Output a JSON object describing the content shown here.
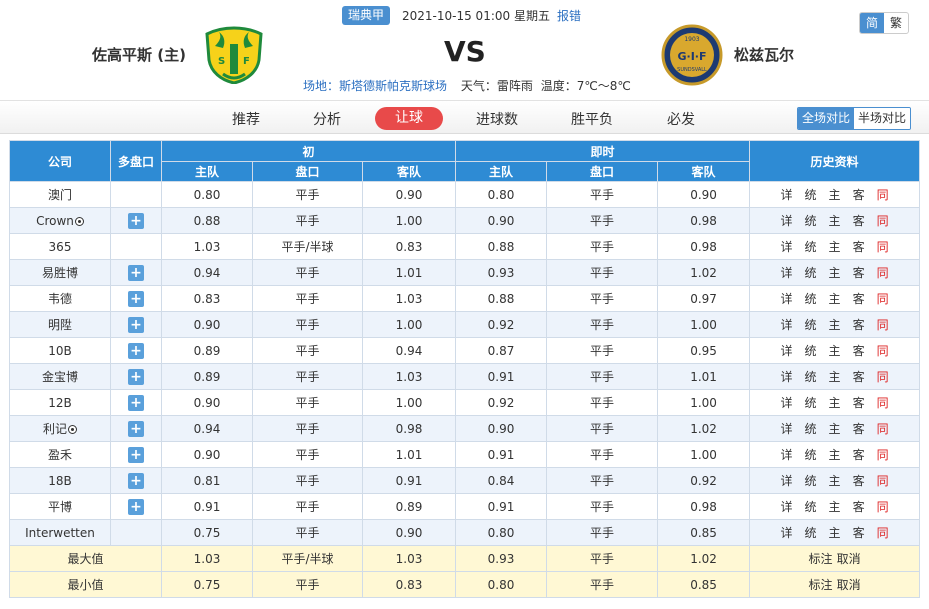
{
  "header": {
    "league": "瑞典甲",
    "datetime": "2021-10-15 01:00 星期五",
    "report": "报错",
    "lang_simplified": "简",
    "lang_traditional": "繁",
    "home_team": "佐高平斯 (主)",
    "away_team": "松兹瓦尔",
    "vs": "VS",
    "home_logo_text": "SJF",
    "away_logo_text": "G·I·F",
    "away_logo_year": "1903",
    "away_logo_sub": "SUNDSVALL",
    "venue_label": "场地：斯塔德斯帕克斯球场",
    "weather": "天气：雷阵雨",
    "temperature": "温度：7℃～8℃",
    "colors": {
      "accent": "#4a8fd0",
      "active_tab": "#e84a4a",
      "table_header": "#2e8bd4"
    }
  },
  "nav": {
    "items": [
      "推荐",
      "分析",
      "让球",
      "进球数",
      "胜平负",
      "必发"
    ],
    "active_index": 2,
    "compare_full": "全场对比",
    "compare_half": "半场对比"
  },
  "table": {
    "head": {
      "company": "公司",
      "multi": "多盘口",
      "initial": "初",
      "live": "即时",
      "history": "历史资料",
      "home": "主队",
      "line": "盘口",
      "away": "客队"
    },
    "history_links": [
      "详",
      "统",
      "主",
      "客",
      "同"
    ],
    "rows": [
      {
        "company": "澳门",
        "ball": false,
        "plus": false,
        "i_home": "0.80",
        "i_line": "平手",
        "i_away": "0.90",
        "l_home": "0.80",
        "l_line": "平手",
        "l_away": "0.90"
      },
      {
        "company": "Crown",
        "ball": true,
        "plus": true,
        "i_home": "0.88",
        "i_line": "平手",
        "i_away": "1.00",
        "l_home": "0.90",
        "l_line": "平手",
        "l_away": "0.98"
      },
      {
        "company": "365",
        "ball": false,
        "plus": false,
        "i_home": "1.03",
        "i_line": "平手/半球",
        "i_away": "0.83",
        "l_home": "0.88",
        "l_line": "平手",
        "l_away": "0.98"
      },
      {
        "company": "易胜博",
        "ball": false,
        "plus": true,
        "i_home": "0.94",
        "i_line": "平手",
        "i_away": "1.01",
        "l_home": "0.93",
        "l_line": "平手",
        "l_away": "1.02"
      },
      {
        "company": "韦德",
        "ball": false,
        "plus": true,
        "i_home": "0.83",
        "i_line": "平手",
        "i_away": "1.03",
        "l_home": "0.88",
        "l_line": "平手",
        "l_away": "0.97"
      },
      {
        "company": "明陞",
        "ball": false,
        "plus": true,
        "i_home": "0.90",
        "i_line": "平手",
        "i_away": "1.00",
        "l_home": "0.92",
        "l_line": "平手",
        "l_away": "1.00"
      },
      {
        "company": "10B",
        "ball": false,
        "plus": true,
        "i_home": "0.89",
        "i_line": "平手",
        "i_away": "0.94",
        "l_home": "0.87",
        "l_line": "平手",
        "l_away": "0.95"
      },
      {
        "company": "金宝博",
        "ball": false,
        "plus": true,
        "i_home": "0.89",
        "i_line": "平手",
        "i_away": "1.03",
        "l_home": "0.91",
        "l_line": "平手",
        "l_away": "1.01"
      },
      {
        "company": "12B",
        "ball": false,
        "plus": true,
        "i_home": "0.90",
        "i_line": "平手",
        "i_away": "1.00",
        "l_home": "0.92",
        "l_line": "平手",
        "l_away": "1.00"
      },
      {
        "company": "利记",
        "ball": true,
        "plus": true,
        "i_home": "0.94",
        "i_line": "平手",
        "i_away": "0.98",
        "l_home": "0.90",
        "l_line": "平手",
        "l_away": "1.02"
      },
      {
        "company": "盈禾",
        "ball": false,
        "plus": true,
        "i_home": "0.90",
        "i_line": "平手",
        "i_away": "1.01",
        "l_home": "0.91",
        "l_line": "平手",
        "l_away": "1.00"
      },
      {
        "company": "18B",
        "ball": false,
        "plus": true,
        "i_home": "0.81",
        "i_line": "平手",
        "i_away": "0.91",
        "l_home": "0.84",
        "l_line": "平手",
        "l_away": "0.92"
      },
      {
        "company": "平博",
        "ball": false,
        "plus": true,
        "i_home": "0.91",
        "i_line": "平手",
        "i_away": "0.89",
        "l_home": "0.91",
        "l_line": "平手",
        "l_away": "0.98"
      },
      {
        "company": "Interwetten",
        "ball": false,
        "plus": false,
        "i_home": "0.75",
        "i_line": "平手",
        "i_away": "0.90",
        "l_home": "0.80",
        "l_line": "平手",
        "l_away": "0.85"
      }
    ],
    "summary": [
      {
        "label": "最大值",
        "i_home": "1.03",
        "i_line": "平手/半球",
        "i_away": "1.03",
        "l_home": "0.93",
        "l_line": "平手",
        "l_away": "1.02",
        "mark": "标注",
        "cancel": "取消"
      },
      {
        "label": "最小值",
        "i_home": "0.75",
        "i_line": "平手",
        "i_away": "0.83",
        "l_home": "0.80",
        "l_line": "平手",
        "l_away": "0.85",
        "mark": "标注",
        "cancel": "取消"
      }
    ]
  }
}
